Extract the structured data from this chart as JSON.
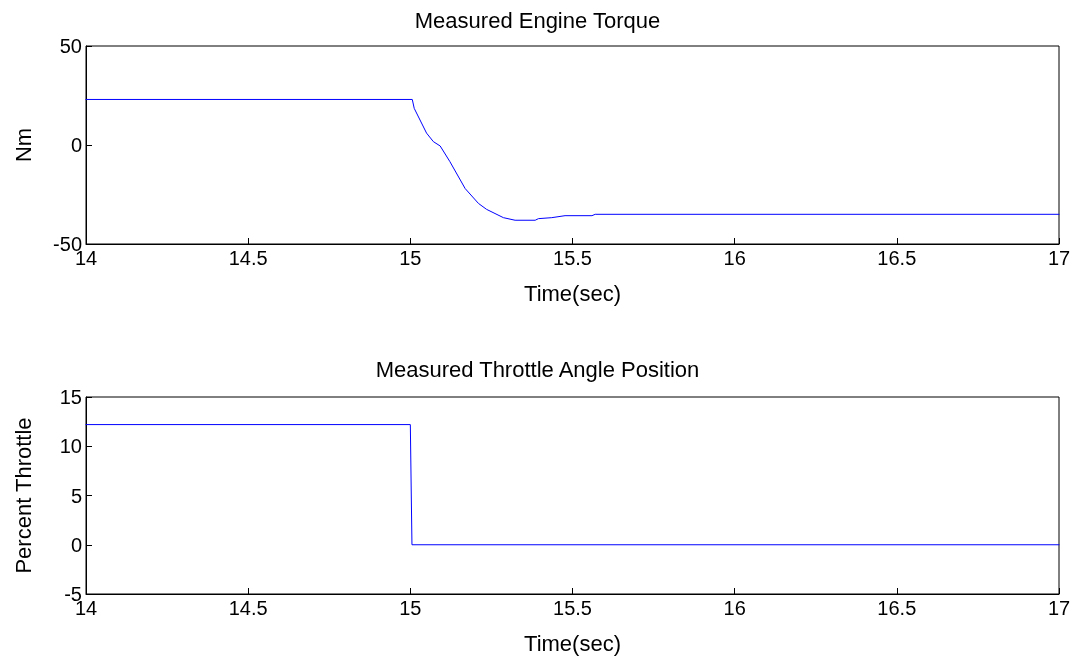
{
  "chart_data": [
    {
      "type": "line",
      "title": "Measured Engine Torque",
      "xlabel": "Time(sec)",
      "ylabel": "Nm",
      "xlim": [
        14,
        17
      ],
      "xticks": [
        14,
        14.5,
        15,
        15.5,
        16,
        16.5,
        17
      ],
      "ylim": [
        -50,
        50
      ],
      "yticks": [
        -50,
        0,
        50
      ],
      "grid": false,
      "marker": "none",
      "line_style": "solid",
      "series": [
        {
          "color": "#0000ff",
          "x": [
            14,
            15.006,
            15.012,
            15.05,
            15.071,
            15.092,
            15.122,
            15.169,
            15.21,
            15.235,
            15.287,
            15.323,
            15.385,
            15.395,
            15.436,
            15.477,
            15.56,
            15.57,
            17
          ],
          "values": [
            23,
            23,
            18.5,
            6,
            1.7,
            -0.5,
            -8.4,
            -22,
            -29.5,
            -32.5,
            -36.7,
            -38,
            -38,
            -37.2,
            -36.7,
            -35.7,
            -35.7,
            -35,
            -35
          ]
        }
      ]
    },
    {
      "type": "line",
      "title": "Measured Throttle Angle Position",
      "xlabel": "Time(sec)",
      "ylabel": "Percent Throttle",
      "xlim": [
        14,
        17
      ],
      "xticks": [
        14,
        14.5,
        15,
        15.5,
        16,
        16.5,
        17
      ],
      "ylim": [
        -5,
        15
      ],
      "yticks": [
        -5,
        0,
        5,
        10,
        15
      ],
      "grid": false,
      "marker": "none",
      "line_style": "solid",
      "series": [
        {
          "color": "#0000ff",
          "x": [
            14,
            15,
            15.005,
            17
          ],
          "values": [
            12.2,
            12.2,
            0,
            0
          ]
        }
      ]
    }
  ]
}
